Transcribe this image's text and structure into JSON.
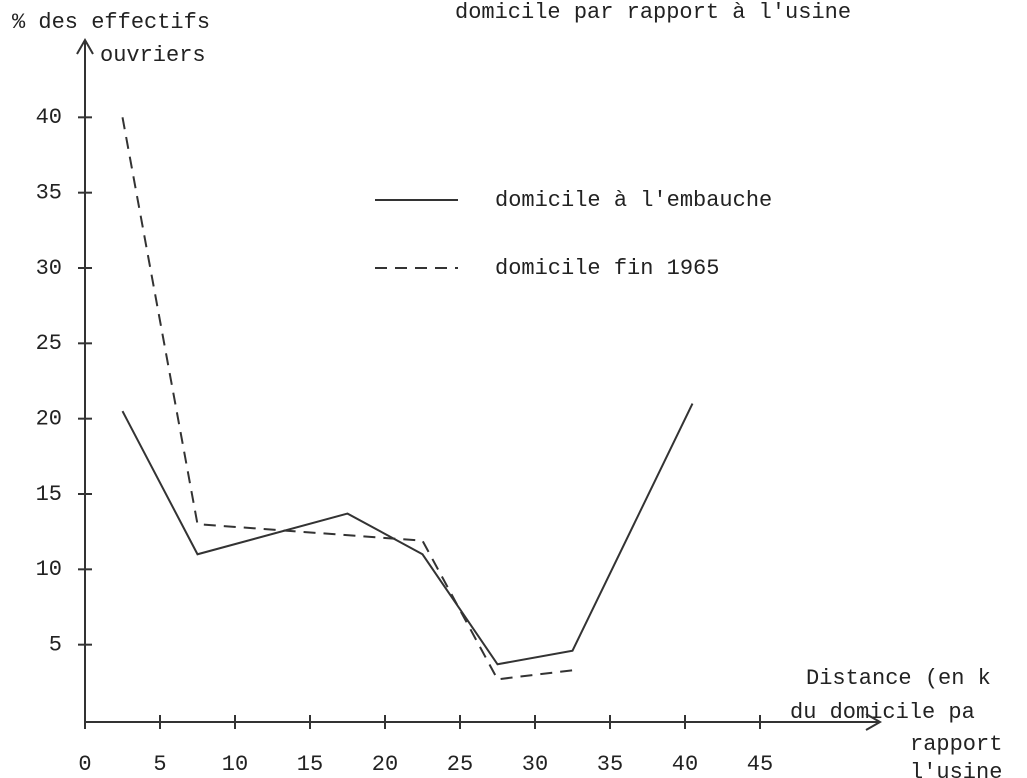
{
  "chart_data": {
    "type": "line",
    "title": "domicile par rapport à l'usine",
    "y_label": [
      "% des effectifs",
      "ouvriers"
    ],
    "x_label": [
      "Distance (en k",
      "du domicile pa",
      "rapport",
      "l'usine"
    ],
    "xlim": [
      0,
      53
    ],
    "ylim": [
      0,
      45
    ],
    "xticks": [
      0,
      5,
      10,
      15,
      20,
      25,
      30,
      35,
      40,
      45
    ],
    "yticks": [
      5,
      10,
      15,
      20,
      25,
      30,
      35,
      40
    ],
    "series": [
      {
        "name": "domicile à l'embauche",
        "color": "#333",
        "dash": false,
        "x": [
          2.5,
          7.5,
          17.5,
          22.5,
          27.5,
          32.5,
          40.5
        ],
        "values": [
          20.5,
          11,
          13.7,
          11,
          3.7,
          4.6,
          21
        ]
      },
      {
        "name": "domicile fin 1965",
        "color": "#333",
        "dash": true,
        "x": [
          2.5,
          7.5,
          22.5,
          27.5,
          32.5
        ],
        "values": [
          40,
          13,
          11.9,
          2.7,
          3.3
        ]
      }
    ]
  }
}
